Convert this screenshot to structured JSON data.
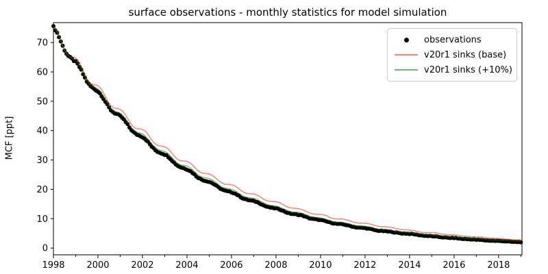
{
  "chart_data": {
    "type": "line+scatter",
    "title": "surface observations - monthly statistics for model simulation",
    "xlabel": "",
    "ylabel": "MCF [ppt]",
    "xlim": [
      1998.0,
      2019.05
    ],
    "ylim": [
      -2.3,
      76.8
    ],
    "x_ticks_major": [
      1998,
      2000,
      2002,
      2004,
      2006,
      2008,
      2010,
      2012,
      2014,
      2016,
      2018
    ],
    "x_ticks_minor": [
      1999,
      2001,
      2003,
      2005,
      2007,
      2009,
      2011,
      2013,
      2015,
      2017,
      2019
    ],
    "y_ticks": [
      0,
      10,
      20,
      30,
      40,
      50,
      60,
      70
    ],
    "grid": false,
    "legend_position": "upper right",
    "x_start": 1998.0,
    "x_step": 0.25,
    "seasonal_phase": 0.1,
    "series": [
      {
        "name": "observations",
        "type": "scatter",
        "color": "#000000",
        "opacity": 1.0,
        "marker_radius": 3,
        "seasonal_amplitude": 0.015,
        "jitter": 0.35,
        "values": [
          74.4,
          71.3,
          68.3,
          65.4,
          62.6,
          60.0,
          57.5,
          55.1,
          52.7,
          50.5,
          48.4,
          46.4,
          44.4,
          42.5,
          40.8,
          39.0,
          37.4,
          35.8,
          34.3,
          32.9,
          31.5,
          30.2,
          28.9,
          27.7,
          26.5,
          25.4,
          24.3,
          23.3,
          22.3,
          21.4,
          20.5,
          19.6,
          18.8,
          18.0,
          17.2,
          16.5,
          15.8,
          15.2,
          14.5,
          13.9,
          13.3,
          12.8,
          12.2,
          11.7,
          11.2,
          10.8,
          10.3,
          9.9,
          9.4,
          9.0,
          8.7,
          8.3,
          8.0,
          7.6,
          7.3,
          7.0,
          6.7,
          6.4,
          6.1,
          5.9,
          5.6,
          5.4,
          5.2,
          5.0,
          4.8,
          4.6,
          4.4,
          4.2,
          4.0,
          3.8,
          3.7,
          3.5,
          3.4,
          3.2,
          3.1,
          3.0,
          2.8,
          2.7,
          2.6,
          2.5,
          2.4,
          2.3,
          2.2,
          2.1,
          2.0
        ]
      },
      {
        "name": "v20r1 sinks (base)",
        "type": "line",
        "color": "#ff0000",
        "opacity": 0.5,
        "line_width": 1.5,
        "seasonal_amplitude": 0.022,
        "values": [
          74.4,
          71.5,
          68.8,
          66.1,
          63.6,
          61.2,
          58.8,
          56.5,
          54.3,
          52.2,
          50.2,
          48.3,
          46.4,
          44.6,
          42.9,
          41.2,
          39.7,
          38.2,
          36.7,
          35.3,
          33.9,
          32.6,
          31.3,
          30.1,
          29.0,
          27.9,
          26.8,
          25.8,
          24.8,
          23.8,
          22.9,
          22.0,
          21.2,
          20.4,
          19.6,
          18.8,
          18.1,
          17.4,
          16.7,
          16.1,
          15.5,
          14.9,
          14.3,
          13.8,
          13.2,
          12.7,
          12.2,
          11.7,
          11.3,
          10.9,
          10.4,
          10.0,
          9.7,
          9.3,
          9.0,
          8.6,
          8.3,
          8.0,
          7.7,
          7.4,
          7.1,
          6.8,
          6.6,
          6.3,
          6.0,
          5.8,
          5.5,
          5.3,
          5.2,
          5.0,
          4.8,
          4.6,
          4.4,
          4.2,
          4.1,
          3.9,
          3.8,
          3.7,
          3.5,
          3.4,
          3.2,
          3.1,
          3.0,
          2.8,
          2.8
        ]
      },
      {
        "name": "v20r1 sinks (+10%)",
        "type": "line",
        "color": "#008000",
        "opacity": 0.55,
        "line_width": 1.5,
        "seasonal_amplitude": 0.018,
        "values": [
          74.4,
          71.4,
          68.5,
          65.7,
          63.0,
          60.4,
          58.0,
          55.6,
          53.4,
          51.2,
          49.1,
          47.1,
          45.2,
          43.4,
          41.6,
          39.9,
          38.3,
          36.7,
          35.3,
          33.8,
          32.4,
          31.1,
          29.8,
          28.6,
          27.5,
          26.4,
          25.3,
          24.3,
          23.3,
          22.4,
          21.4,
          20.6,
          19.7,
          18.9,
          18.1,
          17.4,
          16.7,
          16.0,
          15.4,
          14.7,
          14.1,
          13.5,
          13.0,
          12.4,
          12.0,
          11.5,
          11.0,
          10.6,
          10.1,
          9.7,
          9.3,
          8.9,
          8.6,
          8.2,
          7.9,
          7.6,
          7.3,
          7.0,
          6.7,
          6.4,
          6.2,
          5.9,
          5.7,
          5.5,
          5.2,
          5.0,
          4.8,
          4.6,
          4.4,
          4.2,
          4.1,
          3.9,
          3.7,
          3.6,
          3.4,
          3.3,
          3.2,
          3.0,
          2.9,
          2.8,
          2.7,
          2.6,
          2.5,
          2.4,
          2.3
        ]
      }
    ]
  }
}
